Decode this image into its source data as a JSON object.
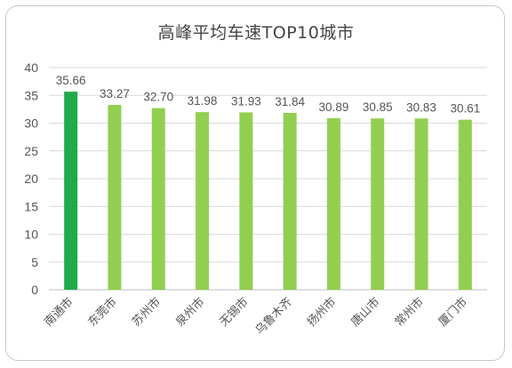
{
  "chart_data": {
    "type": "bar",
    "title": "高峰平均车速TOP10城市",
    "categories": [
      "南通市",
      "东莞市",
      "苏州市",
      "泉州市",
      "无锡市",
      "乌鲁木齐",
      "扬州市",
      "唐山市",
      "常州市",
      "厦门市"
    ],
    "values": [
      35.66,
      33.27,
      32.7,
      31.98,
      31.93,
      31.84,
      30.89,
      30.85,
      30.83,
      30.61
    ],
    "value_labels": [
      "35.66",
      "33.27",
      "32.70",
      "31.98",
      "31.93",
      "31.84",
      "30.89",
      "30.85",
      "30.83",
      "30.61"
    ],
    "ylim": [
      0,
      40
    ],
    "yticks": [
      0,
      5,
      10,
      15,
      20,
      25,
      30,
      35,
      40
    ],
    "grid": true,
    "colors": {
      "highlight": "#1faa4b",
      "bar": "#92cf50",
      "grid": "#d9d9d9",
      "axis": "#bfbfbf"
    },
    "highlight_index": 0
  }
}
